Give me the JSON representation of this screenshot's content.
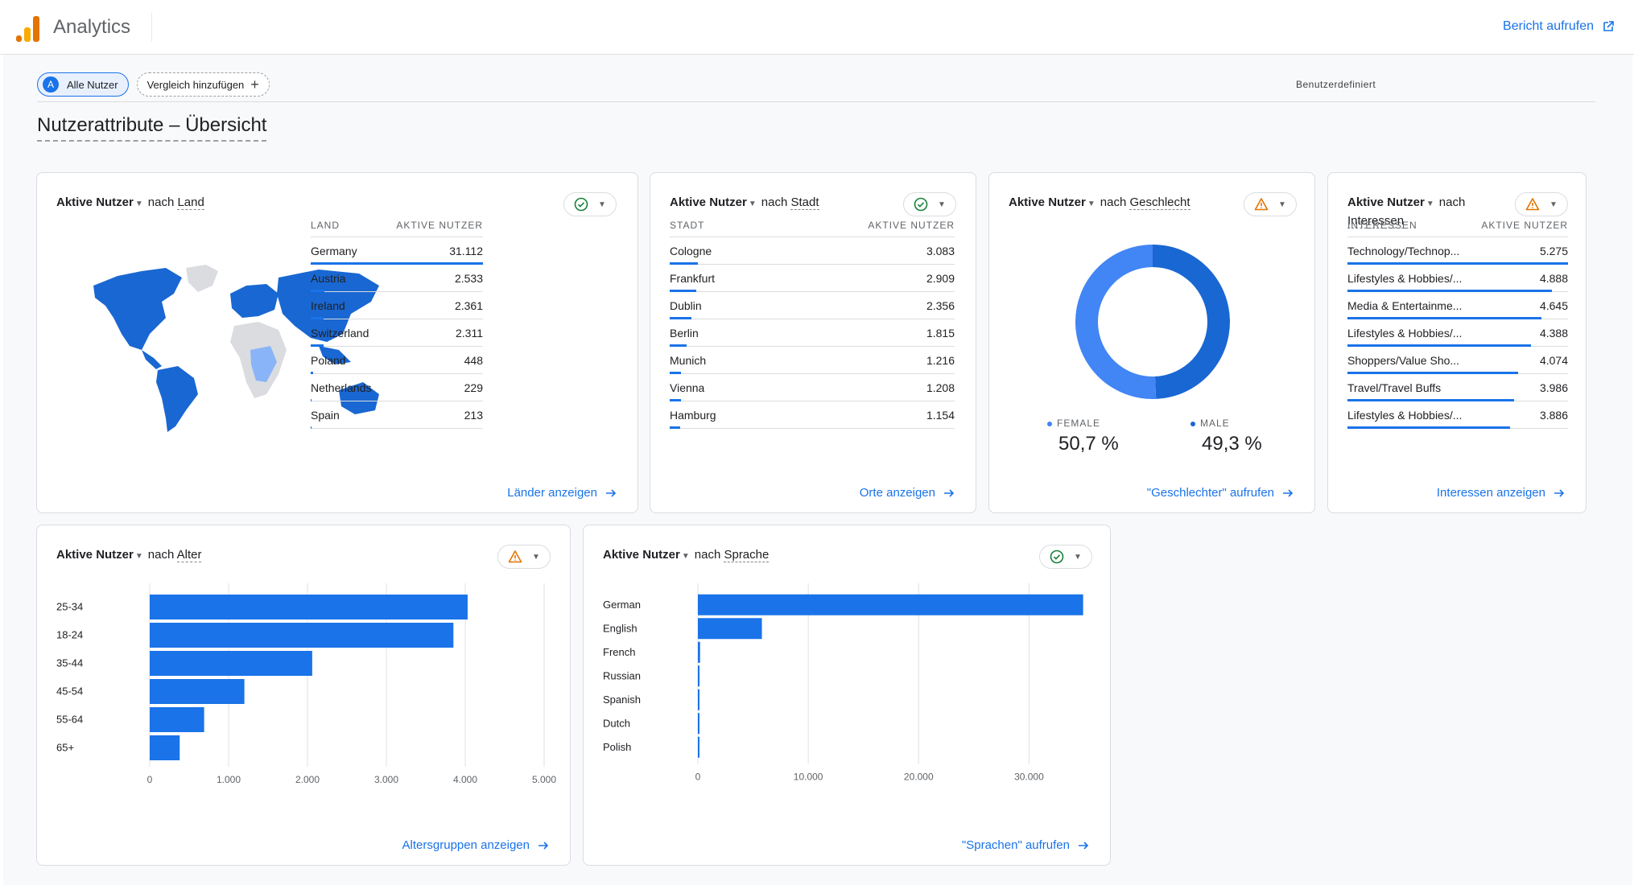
{
  "header": {
    "app_title": "Analytics",
    "report_link": "Bericht aufrufen"
  },
  "filters": {
    "all_users_badge": "A",
    "all_users": "Alle Nutzer",
    "add_comparison": "Vergleich hinzufügen",
    "add_icon": "plus-icon",
    "date_label": "Benutzerdefiniert"
  },
  "page_title": "Nutzerattribute – Übersicht",
  "colors": {
    "accent": "#1a73e8",
    "accent_light": "#4285f4",
    "ok": "#188038",
    "warn": "#e37400"
  },
  "cards": {
    "country": {
      "metric": "Aktive Nutzer",
      "connector": "nach",
      "dimension": "Land",
      "status": "check",
      "col_dim": "LAND",
      "col_metric": "AKTIVE NUTZER",
      "rows": [
        {
          "name": "Germany",
          "value": "31.112",
          "fraction": 1.0
        },
        {
          "name": "Austria",
          "value": "2.533",
          "fraction": 0.081
        },
        {
          "name": "Ireland",
          "value": "2.361",
          "fraction": 0.076
        },
        {
          "name": "Switzerland",
          "value": "2.311",
          "fraction": 0.074
        },
        {
          "name": "Poland",
          "value": "448",
          "fraction": 0.014
        },
        {
          "name": "Netherlands",
          "value": "229",
          "fraction": 0.007
        },
        {
          "name": "Spain",
          "value": "213",
          "fraction": 0.007
        }
      ],
      "link": "Länder anzeigen"
    },
    "city": {
      "metric": "Aktive Nutzer",
      "connector": "nach",
      "dimension": "Stadt",
      "status": "check",
      "col_dim": "STADT",
      "col_metric": "AKTIVE NUTZER",
      "rows": [
        {
          "name": "Cologne",
          "value": "3.083",
          "fraction": 0.1
        },
        {
          "name": "Frankfurt",
          "value": "2.909",
          "fraction": 0.094
        },
        {
          "name": "Dublin",
          "value": "2.356",
          "fraction": 0.076
        },
        {
          "name": "Berlin",
          "value": "1.815",
          "fraction": 0.059
        },
        {
          "name": "Munich",
          "value": "1.216",
          "fraction": 0.039
        },
        {
          "name": "Vienna",
          "value": "1.208",
          "fraction": 0.039
        },
        {
          "name": "Hamburg",
          "value": "1.154",
          "fraction": 0.037
        }
      ],
      "link": "Orte anzeigen"
    },
    "gender": {
      "metric": "Aktive Nutzer",
      "connector": "nach",
      "dimension": "Geschlecht",
      "status": "warning",
      "female_label": "FEMALE",
      "female_value": "50,7 %",
      "male_label": "MALE",
      "male_value": "49,3 %",
      "link": "\"Geschlechter\" aufrufen"
    },
    "interests": {
      "metric": "Aktive Nutzer",
      "connector": "nach",
      "dimension": "Interessen",
      "status": "warning",
      "col_dim": "INTERESSEN",
      "col_metric": "AKTIVE NUTZER",
      "rows": [
        {
          "name": "Technology/Technop...",
          "value": "5.275",
          "fraction": 1.0
        },
        {
          "name": "Lifestyles & Hobbies/...",
          "value": "4.888",
          "fraction": 0.927
        },
        {
          "name": "Media & Entertainme...",
          "value": "4.645",
          "fraction": 0.881
        },
        {
          "name": "Lifestyles & Hobbies/...",
          "value": "4.388",
          "fraction": 0.832
        },
        {
          "name": "Shoppers/Value Sho...",
          "value": "4.074",
          "fraction": 0.772
        },
        {
          "name": "Travel/Travel Buffs",
          "value": "3.986",
          "fraction": 0.756
        },
        {
          "name": "Lifestyles & Hobbies/...",
          "value": "3.886",
          "fraction": 0.737
        }
      ],
      "link": "Interessen anzeigen"
    },
    "age": {
      "metric": "Aktive Nutzer",
      "connector": "nach",
      "dimension": "Alter",
      "status": "warning",
      "link": "Altersgruppen anzeigen"
    },
    "language": {
      "metric": "Aktive Nutzer",
      "connector": "nach",
      "dimension": "Sprache",
      "status": "check",
      "link": "\"Sprachen\" aufrufen"
    }
  },
  "chart_data": [
    {
      "type": "pie",
      "title": "Aktive Nutzer nach Geschlecht",
      "categories": [
        "FEMALE",
        "MALE"
      ],
      "values": [
        50.7,
        49.3
      ],
      "colors": [
        "#4285f4",
        "#1967d2"
      ]
    },
    {
      "type": "bar",
      "orientation": "horizontal",
      "title": "Aktive Nutzer nach Alter",
      "categories": [
        "25-34",
        "18-24",
        "35-44",
        "45-54",
        "55-64",
        "65+"
      ],
      "values": [
        4030,
        3850,
        2060,
        1200,
        690,
        380
      ],
      "xlim": [
        0,
        5000
      ],
      "xticks": [
        "0",
        "1.000",
        "2.000",
        "3.000",
        "4.000",
        "5.000"
      ],
      "grid": true
    },
    {
      "type": "bar",
      "orientation": "horizontal",
      "title": "Aktive Nutzer nach Sprache",
      "categories": [
        "German",
        "English",
        "French",
        "Russian",
        "Spanish",
        "Dutch",
        "Polish"
      ],
      "values": [
        34900,
        5800,
        200,
        150,
        120,
        90,
        60
      ],
      "xlim": [
        0,
        35000
      ],
      "xticks": [
        "0",
        "10.000",
        "20.000",
        "30.000"
      ],
      "grid": true
    }
  ]
}
